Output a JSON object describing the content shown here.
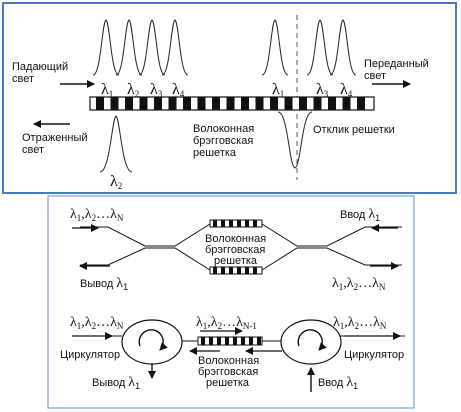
{
  "panel_top": {
    "incident_light": [
      "Падающий",
      "свет"
    ],
    "transmitted_light": [
      "Переданный",
      "свет"
    ],
    "reflected_light": [
      "Отраженный",
      "свет"
    ],
    "grating": [
      "Волоконная",
      "брэгговская",
      "решетка"
    ],
    "response": "Отклик решетки",
    "lambda_symbol": "λ",
    "incident_subs": [
      "1",
      "2",
      "3",
      "4"
    ],
    "transmitted_subs": [
      "1",
      "3",
      "4"
    ],
    "reflected_sub": "2"
  },
  "panel_bottom": {
    "mz_input": [
      "λ",
      "1",
      ",λ",
      "2",
      "…λ",
      "N"
    ],
    "mz_in_label": "Ввод",
    "mz_in_sub": "1",
    "mz_out_label": "Вывод",
    "mz_out_sub": "1",
    "mz_grating": [
      "Волоконная",
      "брэгговская",
      "решетка"
    ],
    "mz_output": [
      "λ",
      "1",
      ",λ",
      "2",
      "…λ",
      "N"
    ],
    "circ_input": [
      "λ",
      "1",
      ",λ",
      "2",
      "…λ",
      "N"
    ],
    "circ_middle": [
      "λ",
      "1",
      ",λ",
      "2",
      "…λ",
      "N-1"
    ],
    "circ_output": [
      "λ",
      "1",
      ",λ",
      "2",
      "…λ",
      "N"
    ],
    "circ_grating": [
      "Волоконная",
      "брэгговская",
      "решетка"
    ],
    "circulator_left": "Циркулятор",
    "circulator_right": "Циркулятор",
    "circ_out_label": "Вывод",
    "circ_out_sub": "1",
    "circ_in_label": "Ввод",
    "circ_in_sub": "1"
  },
  "colors": {
    "top_border": "#4a78c2",
    "bottom_border": "#7aa0d8",
    "ink": "#111111"
  }
}
